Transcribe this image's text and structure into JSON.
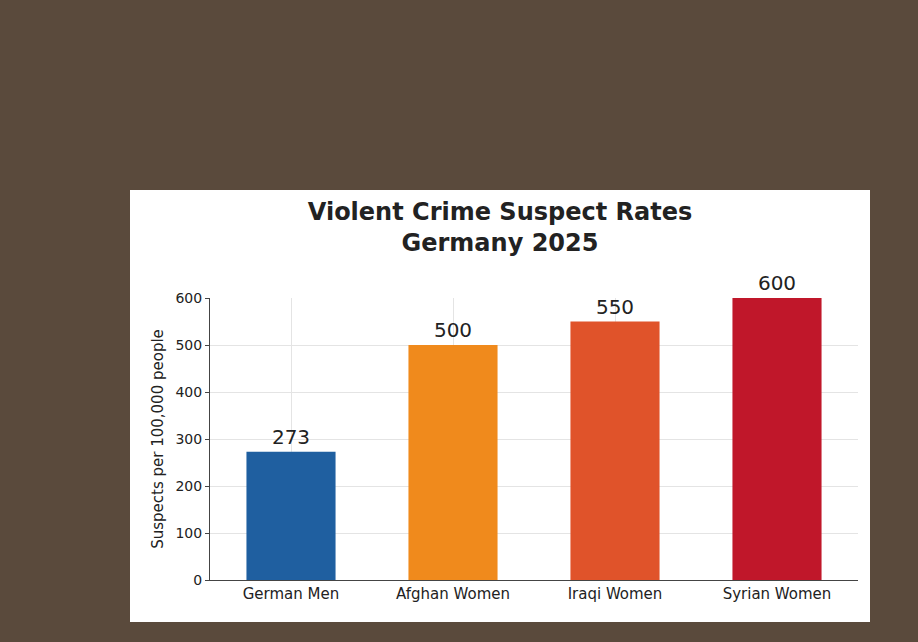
{
  "chart_data": {
    "type": "bar",
    "title": "Violent Crime Suspect Rates\nGermany 2025",
    "ylabel": "Suspects per 100,000 people",
    "categories": [
      "German Men",
      "Afghan Women",
      "Iraqi Women",
      "Syrian Women"
    ],
    "values": [
      273,
      500,
      550,
      600
    ],
    "colors": [
      "#1f5fa0",
      "#f08a1c",
      "#e0532a",
      "#c0172a"
    ],
    "ylim": [
      0,
      600
    ],
    "yticks": [
      0,
      100,
      200,
      300,
      400,
      500,
      600
    ],
    "grid": true,
    "data_labels": true
  }
}
